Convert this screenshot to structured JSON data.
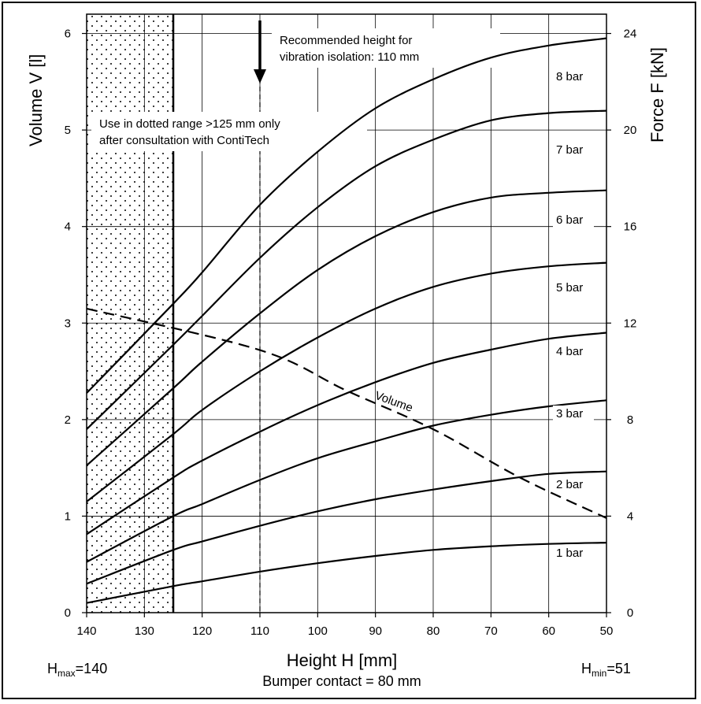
{
  "chart_data": {
    "type": "line",
    "xlabel": "Height H [mm]",
    "ylabel": "Volume V [l]",
    "y2label": "Force F [kN]",
    "x_reversed": true,
    "xlim": [
      140,
      50
    ],
    "ylim": [
      0,
      6.2
    ],
    "y2lim": [
      0,
      24.8
    ],
    "xticks": [
      "140",
      "130",
      "120",
      "110",
      "100",
      "90",
      "80",
      "70",
      "60",
      "50"
    ],
    "yticks": [
      "0",
      "1",
      "2",
      "3",
      "4",
      "5",
      "6"
    ],
    "y2ticks": [
      "0",
      "4",
      "8",
      "12",
      "16",
      "20",
      "24"
    ],
    "x": [
      140,
      125,
      120,
      110,
      100,
      90,
      80,
      70,
      60,
      50
    ],
    "series": [
      {
        "name": "1 bar",
        "axis": "force",
        "values": [
          0.4,
          1.1,
          1.3,
          1.7,
          2.05,
          2.35,
          2.6,
          2.75,
          2.85,
          2.9
        ]
      },
      {
        "name": "2 bar",
        "axis": "force",
        "values": [
          1.2,
          2.6,
          2.95,
          3.6,
          4.2,
          4.7,
          5.1,
          5.45,
          5.75,
          5.85
        ]
      },
      {
        "name": "3 bar",
        "axis": "force",
        "values": [
          2.1,
          4.0,
          4.5,
          5.5,
          6.4,
          7.1,
          7.75,
          8.2,
          8.55,
          8.8
        ]
      },
      {
        "name": "4 bar",
        "axis": "force",
        "values": [
          3.25,
          5.6,
          6.3,
          7.5,
          8.6,
          9.55,
          10.35,
          10.9,
          11.35,
          11.6
        ]
      },
      {
        "name": "5 bar",
        "axis": "force",
        "values": [
          4.6,
          7.4,
          8.4,
          10.0,
          11.4,
          12.6,
          13.5,
          14.05,
          14.35,
          14.5
        ]
      },
      {
        "name": "6 bar",
        "axis": "force",
        "values": [
          6.1,
          9.3,
          10.4,
          12.4,
          14.2,
          15.6,
          16.6,
          17.2,
          17.4,
          17.5
        ]
      },
      {
        "name": "7 bar",
        "axis": "force",
        "values": [
          7.6,
          11.1,
          12.3,
          14.7,
          16.8,
          18.5,
          19.6,
          20.4,
          20.7,
          20.8
        ]
      },
      {
        "name": "8 bar",
        "axis": "force",
        "values": [
          9.1,
          12.8,
          14.1,
          16.9,
          19.1,
          20.9,
          22.1,
          23.0,
          23.5,
          23.8
        ]
      }
    ],
    "volume_series": {
      "name": "Volume",
      "axis": "volume",
      "x": [
        140,
        110,
        95,
        80,
        65,
        50
      ],
      "values": [
        3.15,
        2.72,
        2.3,
        1.9,
        1.4,
        0.98
      ]
    },
    "annotations": {
      "recommended": [
        "Recommended height for",
        "vibration isolation: 110 mm"
      ],
      "recommended_x": 110,
      "dotted_range": [
        "Use in dotted range >125 mm only",
        "after consultation with ContiTech"
      ],
      "dotted_from": 140,
      "dotted_to": 125
    },
    "grid": true
  },
  "footer": {
    "hmax_main": "H",
    "hmax_sub": "max",
    "hmax_value": "=140",
    "hmin_main": "H",
    "hmin_sub": "min",
    "hmin_value": "=51",
    "bumper": "Bumper contact = 80 mm"
  }
}
